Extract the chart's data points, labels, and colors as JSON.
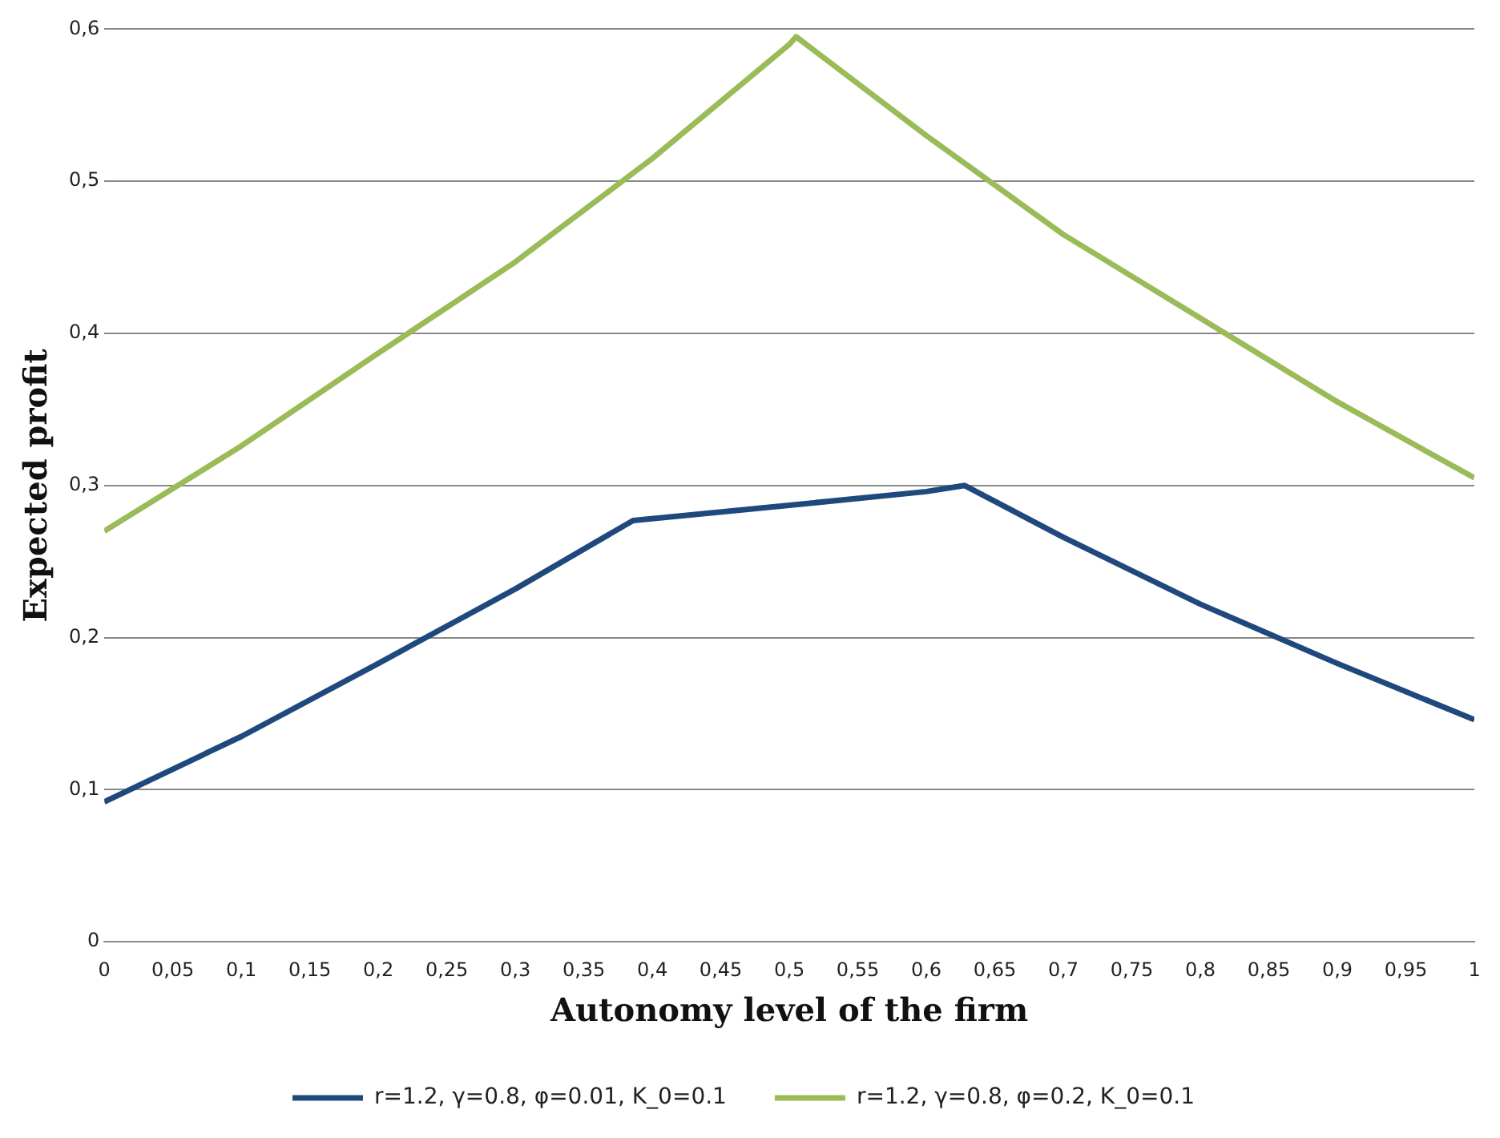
{
  "chart_data": {
    "type": "line",
    "xlabel": "Autonomy level of the firm",
    "ylabel": "Expected profit",
    "xlim": [
      0,
      1
    ],
    "xticks": [
      0,
      {
        "value": 0.05,
        "label": "0,05"
      },
      {
        "value": 0.1,
        "label": "0,1"
      },
      {
        "value": 0.15,
        "label": "0,15"
      },
      {
        "value": 0.2,
        "label": "0,2"
      },
      {
        "value": 0.25,
        "label": "0,25"
      },
      {
        "value": 0.3,
        "label": "0,3"
      },
      {
        "value": 0.35,
        "label": "0,35"
      },
      {
        "value": 0.4,
        "label": "0,4"
      },
      {
        "value": 0.45,
        "label": "0,45"
      },
      {
        "value": 0.5,
        "label": "0,5"
      },
      {
        "value": 0.55,
        "label": "0,55"
      },
      {
        "value": 0.6,
        "label": "0,6"
      },
      {
        "value": 0.65,
        "label": "0,65"
      },
      {
        "value": 0.7,
        "label": "0,7"
      },
      {
        "value": 0.75,
        "label": "0,75"
      },
      {
        "value": 0.8,
        "label": "0,8"
      },
      {
        "value": 0.85,
        "label": "0,85"
      },
      {
        "value": 0.9,
        "label": "0,9"
      },
      {
        "value": 0.95,
        "label": "0,95"
      },
      1
    ],
    "ylim": [
      0,
      0.6
    ],
    "yticks": [
      0,
      {
        "value": 0.1,
        "label": "0,1"
      },
      {
        "value": 0.2,
        "label": "0,2"
      },
      {
        "value": 0.3,
        "label": "0,3"
      },
      {
        "value": 0.4,
        "label": "0,4"
      },
      {
        "value": 0.5,
        "label": "0,5"
      },
      {
        "value": 0.6,
        "label": "0,6"
      }
    ],
    "grid": "y",
    "legend": "bottom",
    "marker": "none",
    "line_style": "solid",
    "series": [
      {
        "name": "r=1.2, γ=0.8, φ=0.01, K_0=0.1",
        "color": "#1f497d",
        "x": [
          0,
          0.1,
          0.2,
          0.3,
          0.386,
          0.5,
          0.6,
          0.628,
          0.7,
          0.8,
          0.9,
          1
        ],
        "values": [
          0.092,
          0.135,
          0.183,
          0.232,
          0.277,
          0.287,
          0.296,
          0.3,
          0.266,
          0.222,
          0.183,
          0.146
        ]
      },
      {
        "name": "r=1.2, γ=0.8, φ=0.2, K_0=0.1",
        "color": "#9bbb59",
        "x": [
          0,
          0.1,
          0.2,
          0.3,
          0.4,
          0.5,
          0.505,
          0.6,
          0.7,
          0.8,
          0.9,
          1
        ],
        "values": [
          0.27,
          0.326,
          0.387,
          0.447,
          0.515,
          0.59,
          0.595,
          0.53,
          0.465,
          0.41,
          0.355,
          0.305
        ]
      }
    ]
  }
}
